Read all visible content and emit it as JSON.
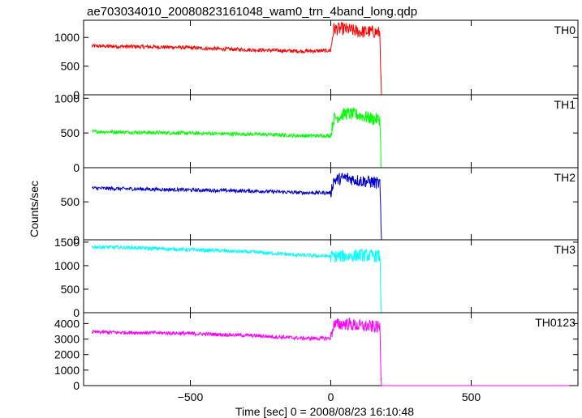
{
  "title": "ae703034010_20080823161048_wam0_trn_4band_long.qdp",
  "xlabel": "Time [sec] 0 = 2008/08/23 16:10:48",
  "ylabel": "Counts/sec",
  "chart_data": {
    "type": "line",
    "title": "ae703034010_20080823161048_wam0_trn_4band_long.qdp",
    "xlabel": "Time [sec] 0 = 2008/08/23 16:10:48",
    "ylabel": "Counts/sec",
    "xlim": [
      -880,
      880
    ],
    "xticks": [
      -500,
      0,
      500
    ],
    "x_sampled": [
      -850,
      -700,
      -550,
      -400,
      -250,
      -100,
      0,
      10,
      50,
      100,
      150,
      175,
      180,
      500,
      850
    ],
    "panels": [
      {
        "name": "TH0",
        "color": "#ff0000",
        "ylim": [
          0,
          1300
        ],
        "yticks": [
          0,
          500,
          1000
        ],
        "y_sampled": [
          850,
          840,
          830,
          800,
          780,
          760,
          770,
          1150,
          1150,
          1100,
          1100,
          1080,
          0,
          0,
          0
        ]
      },
      {
        "name": "TH1",
        "color": "#00ff00",
        "ylim": [
          0,
          1050
        ],
        "yticks": [
          0,
          500,
          1000
        ],
        "y_sampled": [
          520,
          510,
          500,
          490,
          480,
          460,
          460,
          700,
          780,
          760,
          700,
          700,
          0,
          0,
          0
        ]
      },
      {
        "name": "TH2",
        "color": "#0000cc",
        "ylim": [
          0,
          950
        ],
        "yticks": [
          0,
          500
        ],
        "y_sampled": [
          680,
          670,
          660,
          650,
          640,
          620,
          620,
          780,
          820,
          780,
          760,
          740,
          0,
          0,
          0
        ]
      },
      {
        "name": "TH3",
        "color": "#00ffff",
        "ylim": [
          0,
          1550
        ],
        "yticks": [
          0,
          500,
          1000,
          1500
        ],
        "y_sampled": [
          1400,
          1380,
          1350,
          1320,
          1280,
          1220,
          1200,
          1200,
          1200,
          1220,
          1210,
          1200,
          0,
          0,
          0
        ]
      },
      {
        "name": "TH0123",
        "color": "#ff00ff",
        "ylim": [
          0,
          4700
        ],
        "yticks": [
          0,
          1000,
          2000,
          3000,
          4000
        ],
        "y_sampled": [
          3450,
          3420,
          3380,
          3300,
          3200,
          3050,
          3050,
          3900,
          4000,
          3850,
          3800,
          3750,
          0,
          0,
          0
        ]
      }
    ]
  }
}
